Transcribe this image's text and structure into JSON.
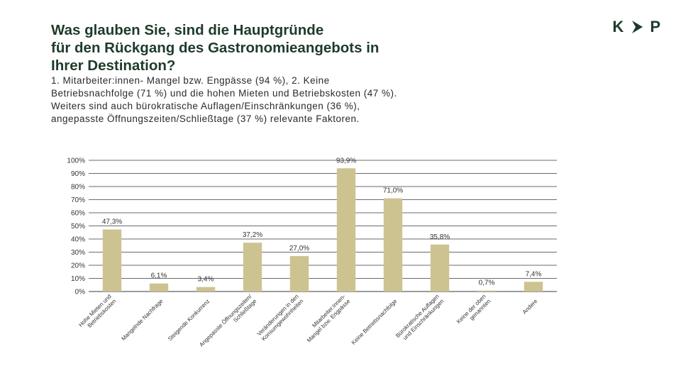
{
  "title_lines": [
    "Was glauben Sie, sind die Hauptgründe",
    "für den Rückgang des Gastronomieangebots in",
    "Ihrer Destination?"
  ],
  "subtitle_lines": [
    "1. Mitarbeiter:innen-  Mangel bzw. Engpässe (94 %), 2. Keine",
    "Betriebsnachfolge (71 %) und die hohen Mieten und Betriebskosten (47 %).",
    "Weiters sind auch bürokratische Auflagen/Einschränkungen  (36 %),",
    "angepasste Öffnungszeiten/Schließtage  (37 %) relevante  Faktoren."
  ],
  "logo": {
    "left": "K",
    "right": "P",
    "icon": "chevron-right-icon"
  },
  "colors": {
    "bar": "#cdc391",
    "title": "#1e3b2b",
    "grid": "#3a3a3a"
  },
  "chart_data": {
    "type": "bar",
    "title": "",
    "xlabel": "",
    "ylabel": "",
    "ylim": [
      0,
      100
    ],
    "yticks": [
      0,
      10,
      20,
      30,
      40,
      50,
      60,
      70,
      80,
      90,
      100
    ],
    "ytick_labels": [
      "0%",
      "10%",
      "20%",
      "30%",
      "40%",
      "50%",
      "60%",
      "70%",
      "80%",
      "90%",
      "100%"
    ],
    "grid": true,
    "categories": [
      [
        "Hohe Mieten und",
        "Betriebskosten"
      ],
      [
        "Mangelnde Nachfrage"
      ],
      [
        "Steigende Konkurrenz"
      ],
      [
        "Angepasste Öffnungszeiten/",
        "Schließtage"
      ],
      [
        "Veränderungen in den",
        "Konsumgewohnheiten"
      ],
      [
        "Mitarbeiter:innen-",
        "Mangel bzw. Engpässe"
      ],
      [
        "Keine Betriebsnachfolge"
      ],
      [
        "Bürokratische Auflagen",
        "und Einschränkungen"
      ],
      [
        "Keine der oben",
        "genannten"
      ],
      [
        "Andere"
      ]
    ],
    "values": [
      47.3,
      6.1,
      3.4,
      37.2,
      27.0,
      93.9,
      71.0,
      35.8,
      0.7,
      7.4
    ],
    "value_labels": [
      "47,3%",
      "6,1%",
      "3,4%",
      "37,2%",
      "27,0%",
      "93,9%",
      "71,0%",
      "35,8%",
      "0,7%",
      "7,4%"
    ]
  }
}
